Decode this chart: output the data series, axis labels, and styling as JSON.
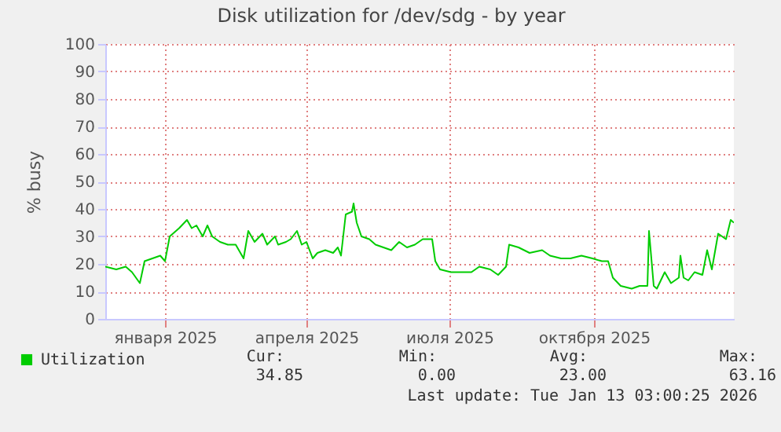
{
  "chart_data": {
    "type": "line",
    "title": "Disk utilization for /dev/sdg - by year",
    "ylabel": "% busy",
    "x": [
      "2024-12-08",
      "2024-12-15",
      "2024-12-21",
      "2024-12-25",
      "2024-12-30",
      "2025-01-02",
      "2025-01-07",
      "2025-01-12",
      "2025-01-15",
      "2025-01-18",
      "2025-01-24",
      "2025-01-29",
      "2025-02-01",
      "2025-02-04",
      "2025-02-08",
      "2025-02-11",
      "2025-02-14",
      "2025-02-19",
      "2025-02-24",
      "2025-03-01",
      "2025-03-06",
      "2025-03-09",
      "2025-03-13",
      "2025-03-18",
      "2025-03-21",
      "2025-03-26",
      "2025-03-28",
      "2025-04-02",
      "2025-04-05",
      "2025-04-09",
      "2025-04-12",
      "2025-04-15",
      "2025-04-19",
      "2025-04-22",
      "2025-04-27",
      "2025-05-02",
      "2025-05-05",
      "2025-05-07",
      "2025-05-10",
      "2025-05-14",
      "2025-05-15",
      "2025-05-17",
      "2025-05-20",
      "2025-05-25",
      "2025-05-29",
      "2025-06-03",
      "2025-06-08",
      "2025-06-13",
      "2025-06-18",
      "2025-06-23",
      "2025-06-28",
      "2025-07-04",
      "2025-07-06",
      "2025-07-09",
      "2025-07-16",
      "2025-07-22",
      "2025-07-29",
      "2025-08-03",
      "2025-08-10",
      "2025-08-15",
      "2025-08-20",
      "2025-08-22",
      "2025-08-28",
      "2025-09-04",
      "2025-09-12",
      "2025-09-17",
      "2025-09-24",
      "2025-09-30",
      "2025-10-07",
      "2025-10-14",
      "2025-10-20",
      "2025-10-24",
      "2025-10-27",
      "2025-11-01",
      "2025-11-08",
      "2025-11-13",
      "2025-11-18",
      "2025-11-19",
      "2025-11-22",
      "2025-11-24",
      "2025-11-29",
      "2025-12-03",
      "2025-12-08",
      "2025-12-09",
      "2025-12-11",
      "2025-12-14",
      "2025-12-18",
      "2025-12-23",
      "2025-12-26",
      "2025-12-29",
      "2026-01-02",
      "2026-01-07",
      "2026-01-10",
      "2026-01-12"
    ],
    "series": [
      {
        "name": "Utilization",
        "color": "#00cc00",
        "values": [
          19,
          18,
          19,
          17,
          13,
          21,
          22,
          23,
          21,
          30,
          33,
          36,
          33,
          34,
          30,
          34,
          30,
          28,
          27,
          27,
          22,
          32,
          28,
          31,
          27,
          30,
          27,
          28,
          29,
          32,
          27,
          28,
          22,
          24,
          25,
          24,
          26,
          23,
          38,
          39,
          42,
          35,
          30,
          29,
          27,
          26,
          25,
          28,
          26,
          27,
          29,
          29,
          21,
          18,
          17,
          17,
          17,
          19,
          18,
          16,
          19,
          27,
          26,
          24,
          25,
          23,
          22,
          22,
          23,
          22,
          21,
          21,
          15,
          12,
          11,
          12,
          12,
          32,
          12,
          11,
          17,
          13,
          15,
          23,
          15,
          14,
          17,
          16,
          25,
          18,
          31,
          29,
          36,
          35
        ]
      }
    ],
    "xlim": [
      "2024-12-08",
      "2026-01-12"
    ],
    "xticks": [
      {
        "value": "2025-01-15",
        "label": "января 2025"
      },
      {
        "value": "2025-04-15",
        "label": "апреля 2025"
      },
      {
        "value": "2025-07-15",
        "label": "июля 2025"
      },
      {
        "value": "2025-10-15",
        "label": "октября 2025"
      }
    ],
    "ylim": [
      0,
      100
    ],
    "yticks": [
      0,
      10,
      20,
      30,
      40,
      50,
      60,
      70,
      80,
      90,
      100
    ],
    "grid": true,
    "legend": "bottom",
    "marker": "none",
    "line_style": "solid",
    "annotations": [
      "Cur:",
      "34.85",
      "Min:",
      "0.00",
      "Avg:",
      "23.00",
      "Max:",
      "63.16",
      "Last update: Tue Jan 13 03:00:25 2026"
    ]
  }
}
